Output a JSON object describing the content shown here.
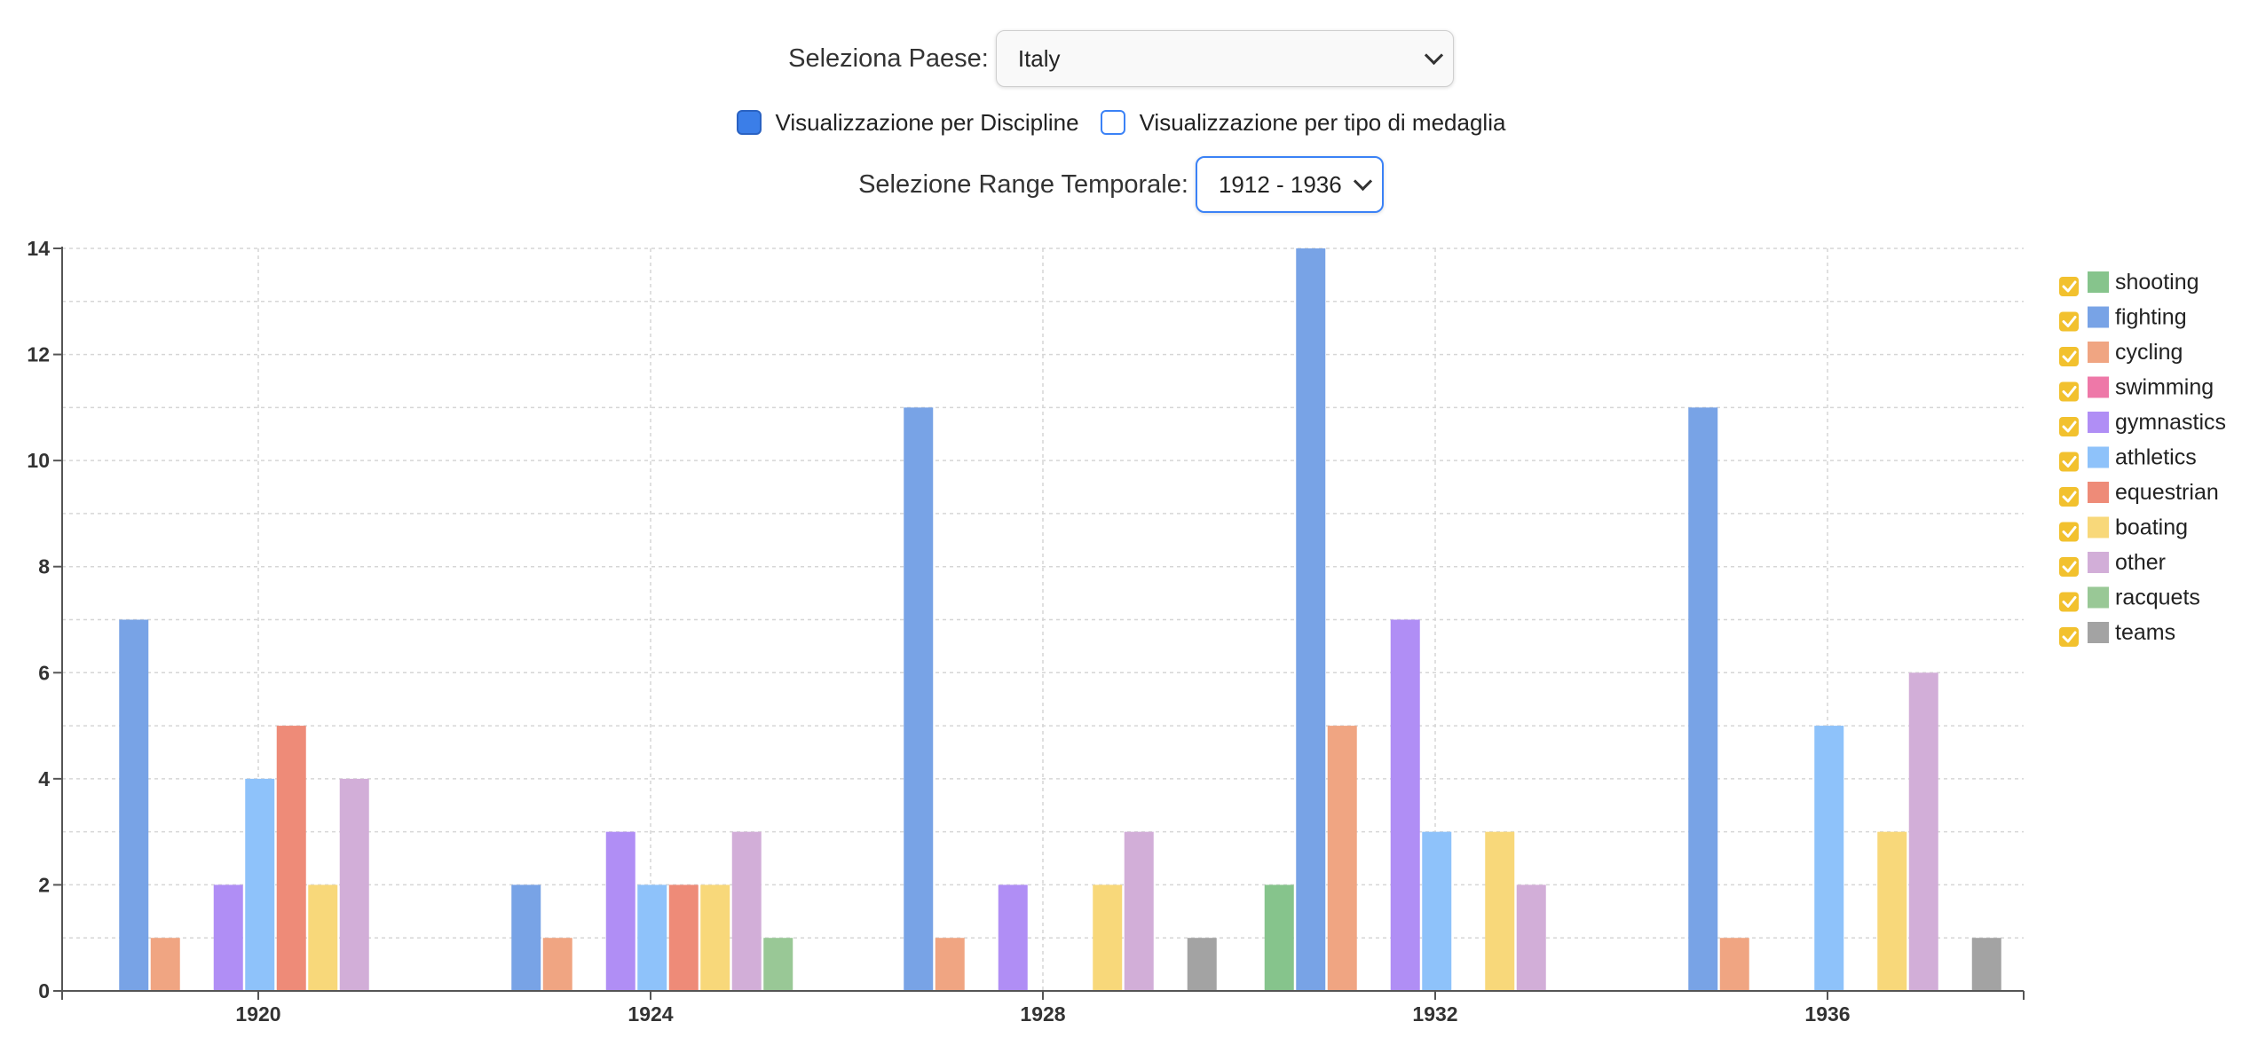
{
  "controls": {
    "country_label": "Seleziona Paese:",
    "country_value": "Italy",
    "view_discipline_label": "Visualizzazione per Discipline",
    "view_discipline_checked": true,
    "view_medal_label": "Visualizzazione per tipo di medaglia",
    "view_medal_checked": false,
    "range_label": "Selezione Range Temporale:",
    "range_value": "1912 - 1936"
  },
  "chart_data": {
    "type": "bar",
    "title": "",
    "xlabel": "",
    "ylabel": "",
    "categories": [
      "1920",
      "1924",
      "1928",
      "1932",
      "1936"
    ],
    "ylim": [
      0,
      14
    ],
    "yticks": [
      "0",
      "2",
      "4",
      "6",
      "8",
      "10",
      "12",
      "14"
    ],
    "grid": true,
    "legend_position": "right",
    "series": [
      {
        "name": "shooting",
        "color": "#86c48c",
        "checked": true,
        "values": [
          0,
          0,
          0,
          2,
          0
        ]
      },
      {
        "name": "fighting",
        "color": "#78a3e6",
        "checked": true,
        "values": [
          7,
          2,
          11,
          14,
          11
        ]
      },
      {
        "name": "cycling",
        "color": "#f0a582",
        "checked": true,
        "values": [
          1,
          1,
          1,
          5,
          1
        ]
      },
      {
        "name": "swimming",
        "color": "#ee78a8",
        "checked": true,
        "values": [
          0,
          0,
          0,
          0,
          0
        ]
      },
      {
        "name": "gymnastics",
        "color": "#b08ef5",
        "checked": true,
        "values": [
          2,
          3,
          2,
          7,
          0
        ]
      },
      {
        "name": "athletics",
        "color": "#8ec2fa",
        "checked": true,
        "values": [
          4,
          2,
          0,
          3,
          5
        ]
      },
      {
        "name": "equestrian",
        "color": "#ee8b78",
        "checked": true,
        "values": [
          5,
          2,
          0,
          0,
          0
        ]
      },
      {
        "name": "boating",
        "color": "#f8d87a",
        "checked": true,
        "values": [
          2,
          2,
          2,
          3,
          3
        ]
      },
      {
        "name": "other",
        "color": "#d2aed8",
        "checked": true,
        "values": [
          4,
          3,
          3,
          2,
          6
        ]
      },
      {
        "name": "racquets",
        "color": "#99c896",
        "checked": true,
        "values": [
          0,
          1,
          0,
          0,
          0
        ]
      },
      {
        "name": "teams",
        "color": "#a3a3a3",
        "checked": true,
        "values": [
          0,
          0,
          1,
          0,
          1
        ]
      }
    ],
    "checkbox_color": "#f2c12e"
  }
}
